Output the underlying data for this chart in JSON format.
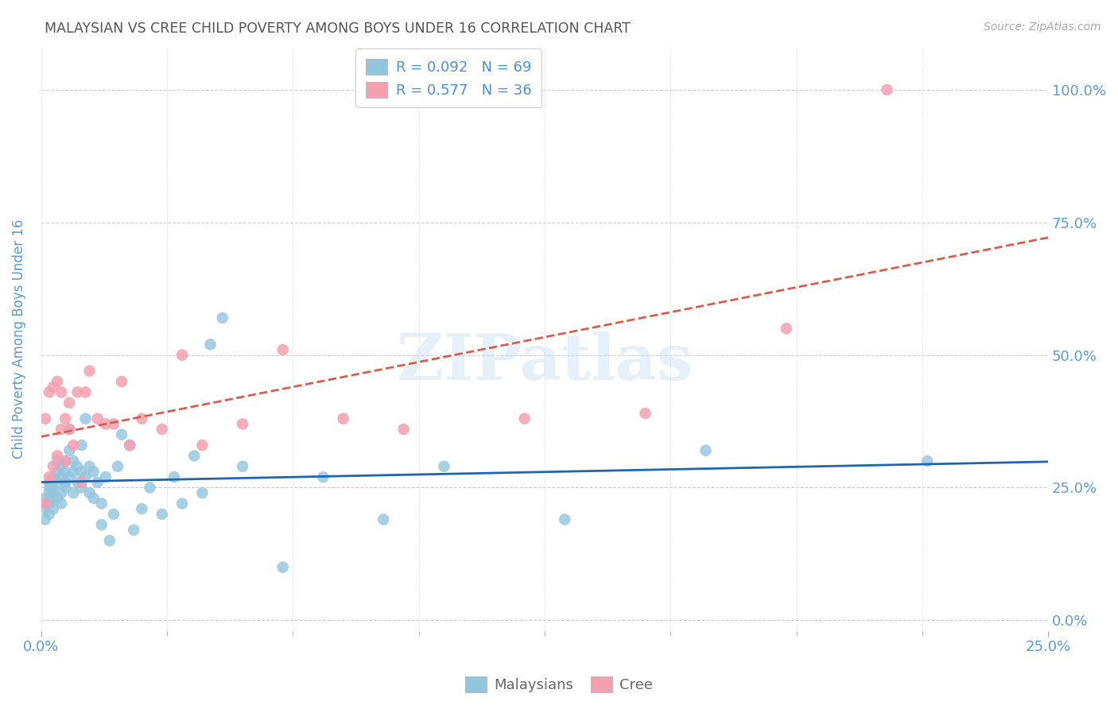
{
  "title": "MALAYSIAN VS CREE CHILD POVERTY AMONG BOYS UNDER 16 CORRELATION CHART",
  "source": "Source: ZipAtlas.com",
  "ylabel": "Child Poverty Among Boys Under 16",
  "ytick_labels": [
    "0.0%",
    "25.0%",
    "50.0%",
    "75.0%",
    "100.0%"
  ],
  "ytick_vals": [
    0.0,
    0.25,
    0.5,
    0.75,
    1.0
  ],
  "xlim": [
    0.0,
    0.25
  ],
  "ylim": [
    -0.02,
    1.08
  ],
  "watermark": "ZIPatlas",
  "blue_color": "#92c5de",
  "pink_color": "#f4a0b0",
  "blue_line_color": "#2166ac",
  "pink_line_color": "#d6604d",
  "legend_text_color": "#4a90d9",
  "title_color": "#555555",
  "axis_label_color": "#5b9bd5",
  "tick_label_color": "#5b9bd5",
  "malaysians_x": [
    0.001,
    0.001,
    0.001,
    0.002,
    0.002,
    0.002,
    0.002,
    0.002,
    0.003,
    0.003,
    0.003,
    0.003,
    0.003,
    0.004,
    0.004,
    0.004,
    0.004,
    0.005,
    0.005,
    0.005,
    0.005,
    0.006,
    0.006,
    0.006,
    0.006,
    0.007,
    0.007,
    0.007,
    0.008,
    0.008,
    0.008,
    0.009,
    0.009,
    0.01,
    0.01,
    0.01,
    0.011,
    0.011,
    0.012,
    0.012,
    0.013,
    0.013,
    0.014,
    0.015,
    0.015,
    0.016,
    0.017,
    0.018,
    0.019,
    0.02,
    0.022,
    0.023,
    0.025,
    0.027,
    0.03,
    0.033,
    0.035,
    0.038,
    0.04,
    0.042,
    0.045,
    0.05,
    0.06,
    0.07,
    0.085,
    0.1,
    0.13,
    0.165,
    0.22
  ],
  "malaysians_y": [
    0.21,
    0.23,
    0.19,
    0.22,
    0.25,
    0.2,
    0.24,
    0.26,
    0.23,
    0.25,
    0.27,
    0.21,
    0.24,
    0.26,
    0.28,
    0.23,
    0.3,
    0.24,
    0.27,
    0.29,
    0.22,
    0.26,
    0.28,
    0.3,
    0.25,
    0.27,
    0.32,
    0.36,
    0.24,
    0.28,
    0.3,
    0.26,
    0.29,
    0.25,
    0.28,
    0.33,
    0.27,
    0.38,
    0.24,
    0.29,
    0.23,
    0.28,
    0.26,
    0.18,
    0.22,
    0.27,
    0.15,
    0.2,
    0.29,
    0.35,
    0.33,
    0.17,
    0.21,
    0.25,
    0.2,
    0.27,
    0.22,
    0.31,
    0.24,
    0.52,
    0.57,
    0.29,
    0.1,
    0.27,
    0.19,
    0.29,
    0.19,
    0.32,
    0.3
  ],
  "cree_x": [
    0.001,
    0.001,
    0.002,
    0.002,
    0.003,
    0.003,
    0.004,
    0.004,
    0.005,
    0.005,
    0.006,
    0.006,
    0.007,
    0.007,
    0.008,
    0.009,
    0.01,
    0.011,
    0.012,
    0.014,
    0.016,
    0.018,
    0.02,
    0.022,
    0.025,
    0.03,
    0.035,
    0.04,
    0.05,
    0.06,
    0.075,
    0.09,
    0.12,
    0.15,
    0.185,
    0.21
  ],
  "cree_y": [
    0.22,
    0.38,
    0.27,
    0.43,
    0.29,
    0.44,
    0.31,
    0.45,
    0.36,
    0.43,
    0.3,
    0.38,
    0.41,
    0.36,
    0.33,
    0.43,
    0.26,
    0.43,
    0.47,
    0.38,
    0.37,
    0.37,
    0.45,
    0.33,
    0.38,
    0.36,
    0.5,
    0.33,
    0.37,
    0.51,
    0.38,
    0.36,
    0.38,
    0.39,
    0.55,
    1.0
  ]
}
